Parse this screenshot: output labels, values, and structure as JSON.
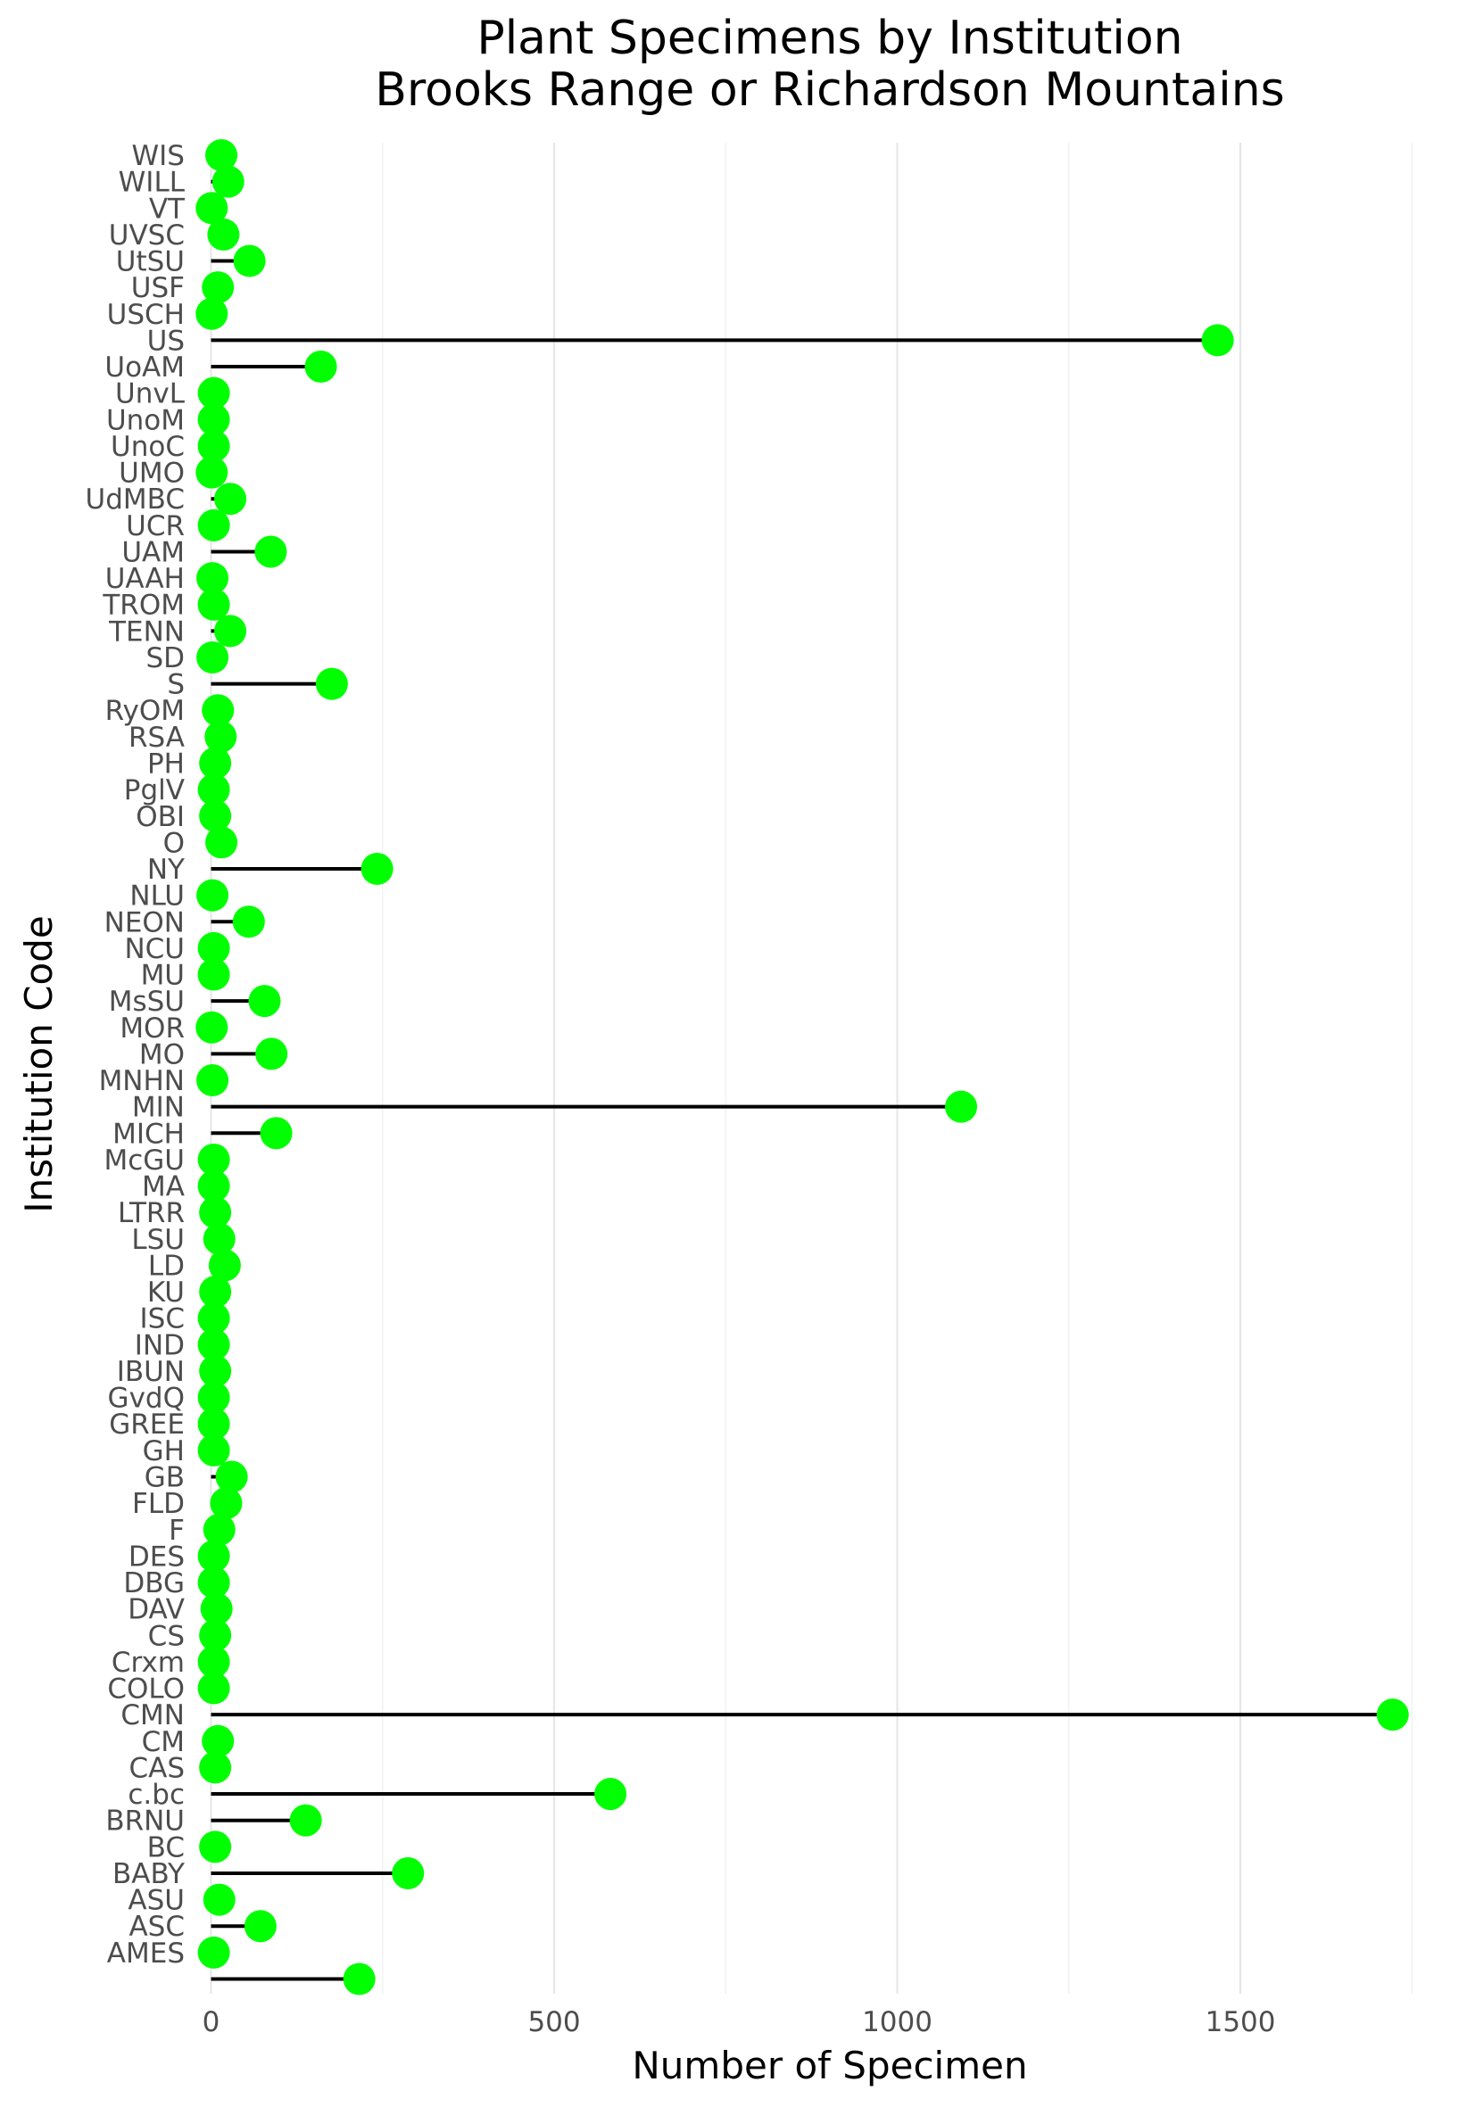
{
  "chart_data": {
    "type": "lollipop",
    "title": "Plant Specimens by Institution",
    "subtitle": "Brooks Range or Richardson Mountains",
    "xlabel": "Number of Specimen",
    "ylabel": "Institution Code",
    "xlim": [
      -80,
      1760
    ],
    "x_ticks": [
      0,
      500,
      1000,
      1500
    ],
    "x_tick_labels": [
      "0",
      "500",
      "1000",
      "1500"
    ],
    "grid": true,
    "point_color": "#00ff00",
    "stem_color": "#000000",
    "categories": [
      "WIS",
      "WILL",
      "VT",
      "UVSC",
      "UtSU",
      "USF",
      "USCH",
      "US",
      "UoAM",
      "UnvL",
      "UnoM",
      "UnoC",
      "UMO",
      "UdMBC",
      "UCR",
      "UAM",
      "UAAH",
      "TROM",
      "TENN",
      "SD",
      "S",
      "RyOM",
      "RSA",
      "PH",
      "PglV",
      "OBI",
      "O",
      "NY",
      "NLU",
      "NEON",
      "NCU",
      "MU",
      "MsSU",
      "MOR",
      "MO",
      "MNHN",
      "MIN",
      "MICH",
      "McGU",
      "MA",
      "LTRR",
      "LSU",
      "LD",
      "KU",
      "ISC",
      "IND",
      "IBUN",
      "GvdQ",
      "GREE",
      "GH",
      "GB",
      "FLD",
      "F",
      "DES",
      "DBG",
      "DAV",
      "CS",
      "Crxm",
      "COLO",
      "CMN",
      "CM",
      "CAS",
      "c.bc",
      "BRNU",
      "BC",
      "BABY",
      "ASU",
      "ASC",
      "AMES",
      ""
    ],
    "values": [
      15,
      25,
      1,
      18,
      56,
      10,
      1,
      1467,
      160,
      4,
      4,
      4,
      1,
      28,
      4,
      87,
      2,
      4,
      28,
      2,
      176,
      10,
      14,
      6,
      4,
      6,
      15,
      242,
      2,
      55,
      4,
      4,
      78,
      1,
      88,
      2,
      1093,
      95,
      4,
      4,
      6,
      12,
      20,
      6,
      4,
      4,
      6,
      4,
      4,
      4,
      30,
      22,
      12,
      4,
      4,
      8,
      6,
      4,
      4,
      1722,
      10,
      6,
      582,
      138,
      6,
      287,
      12,
      72,
      4,
      216
    ]
  }
}
